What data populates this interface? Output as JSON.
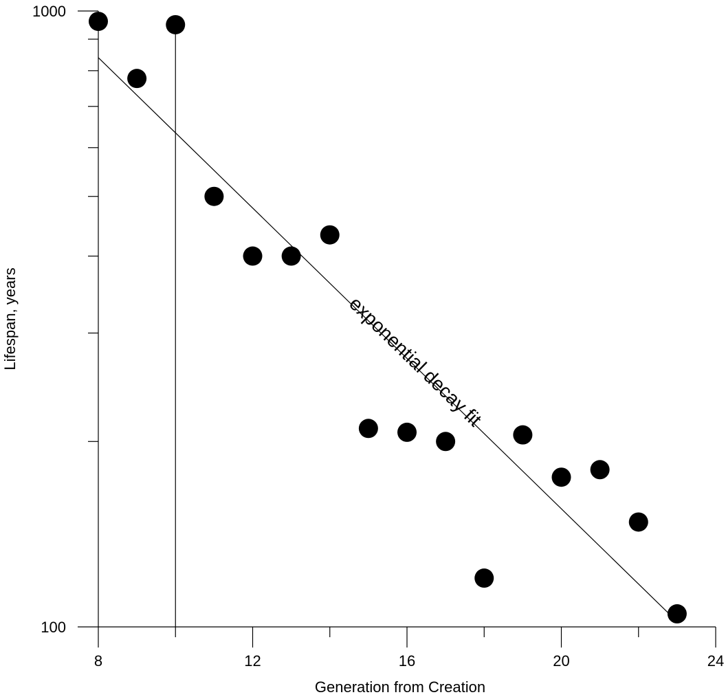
{
  "chart_data": {
    "type": "scatter",
    "title": "",
    "xlabel": "Generation from Creation",
    "ylabel": "Lifespan, years",
    "xlim": [
      8,
      24
    ],
    "ylim": [
      100,
      1000
    ],
    "yscale": "log",
    "x_ticks_major": [
      8,
      12,
      16,
      20,
      24
    ],
    "x_ticks_minor": [
      10,
      14,
      18,
      22
    ],
    "y_tick_labels": [
      100,
      1000
    ],
    "y_ticks_minor": [
      200,
      300,
      400,
      500,
      600,
      700,
      800,
      900
    ],
    "grid": false,
    "legend": "none",
    "marker_color": "#000000",
    "series": [
      {
        "x": [
          8,
          9,
          10,
          11,
          12,
          13,
          14,
          15,
          16,
          17,
          18,
          19,
          20,
          21,
          22,
          23
        ],
        "y": [
          962,
          777,
          950,
          500,
          400,
          400,
          433,
          210,
          207,
          200,
          120,
          205,
          175,
          180,
          148,
          105
        ]
      }
    ],
    "reference_line": {
      "x": 10
    },
    "fit_line": {
      "x": [
        8,
        23
      ],
      "y": [
        840,
        102
      ]
    },
    "annotations": [
      {
        "text": "exponential decay fit",
        "x": 16.1,
        "y": 265
      }
    ]
  }
}
